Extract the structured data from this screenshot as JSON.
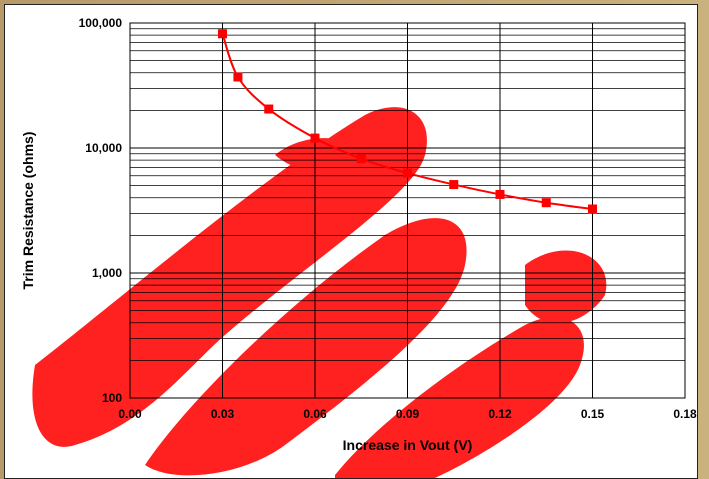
{
  "chart_data": {
    "type": "scatter",
    "title": "",
    "xlabel": "Increase in Vout (V)",
    "ylabel": "Trim Resistance (ohms)",
    "x_ticks": [
      "0.00",
      "0.03",
      "0.06",
      "0.09",
      "0.12",
      "0.15",
      "0.18"
    ],
    "y_ticks": [
      "100",
      "1,000",
      "10,000",
      "100,000"
    ],
    "xlim": [
      0,
      0.18
    ],
    "ylim": [
      100,
      100000
    ],
    "y_scale": "log",
    "grid": true,
    "series": [
      {
        "name": "",
        "color": "#ff0000",
        "marker": "square",
        "line": "smooth",
        "x": [
          0.03,
          0.035,
          0.045,
          0.06,
          0.075,
          0.09,
          0.105,
          0.12,
          0.135,
          0.15
        ],
        "y": [
          82000,
          37000,
          20500,
          12000,
          8200,
          6300,
          5100,
          4250,
          3650,
          3250
        ]
      }
    ]
  },
  "colors": {
    "background_watermark": "#ff2020",
    "series": "#ff0000",
    "grid": "#000000"
  }
}
